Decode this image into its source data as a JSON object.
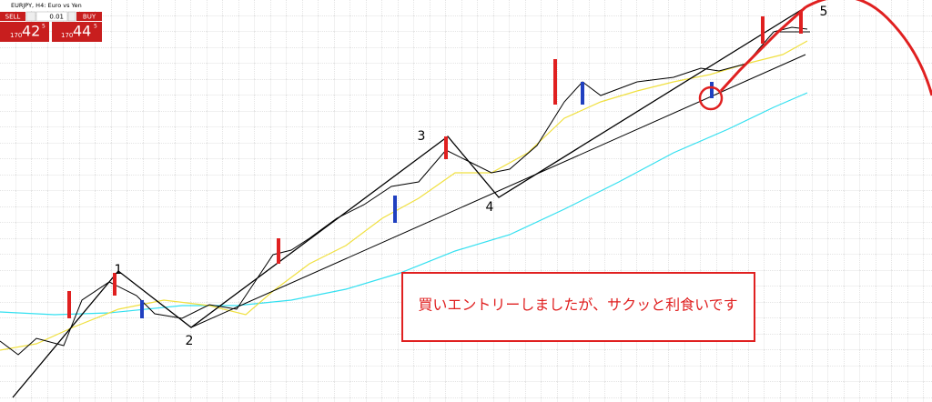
{
  "toolbar": {
    "symbol": "EURJPY, H4: Euro vs Yen",
    "sell_label": "SELL",
    "buy_label": "BUY",
    "lot": "0.01",
    "sell_price": {
      "big": "170",
      "main": "42",
      "sup": "5"
    },
    "buy_price": {
      "big": "170",
      "main": "44",
      "sup": "5"
    }
  },
  "waves": [
    "1",
    "2",
    "3",
    "4",
    "5"
  ],
  "annotation": "買いエントリーしましたが、サクッと利食いです"
}
